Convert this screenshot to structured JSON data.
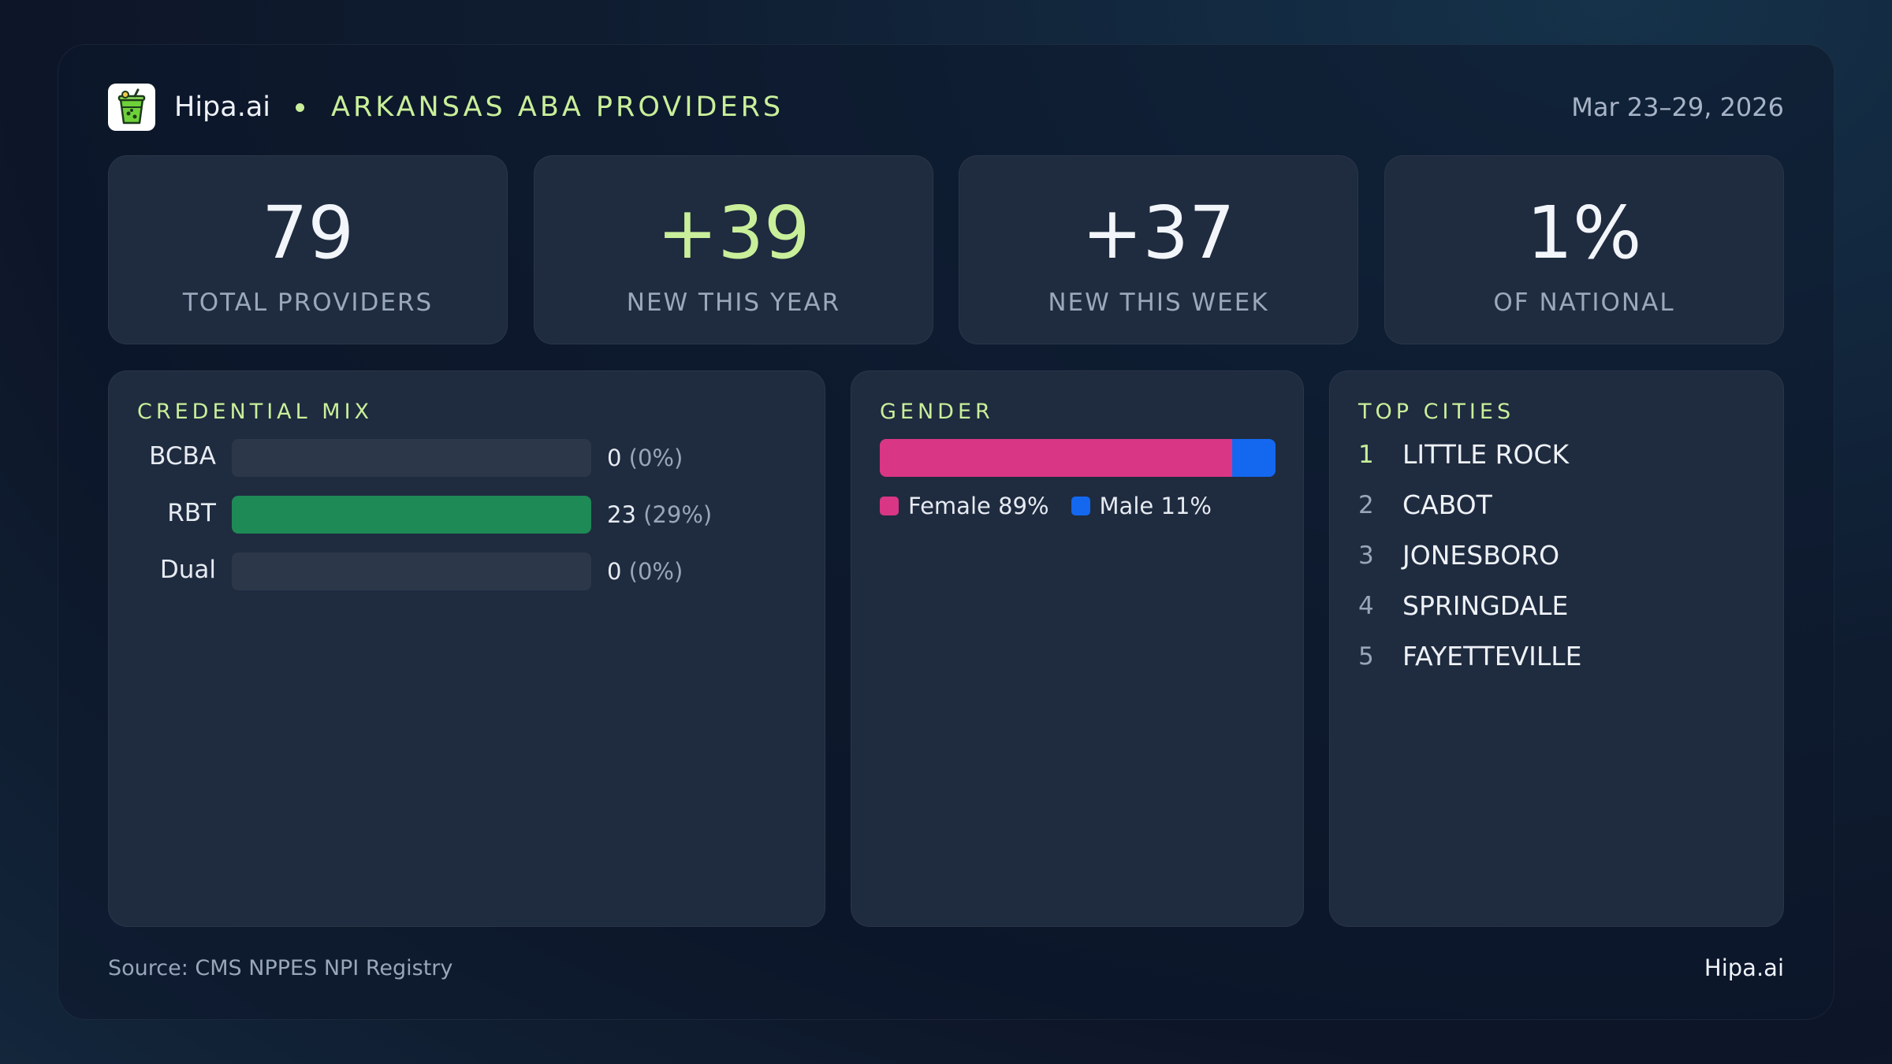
{
  "header": {
    "brand": "Hipa.ai",
    "subtitle": "ARKANSAS ABA PROVIDERS",
    "date_range": "Mar 23–29, 2026",
    "logo_icon": "cup-logo-icon"
  },
  "kpis": [
    {
      "value": "79",
      "label": "TOTAL PROVIDERS"
    },
    {
      "value": "+39",
      "label": "NEW THIS YEAR",
      "accent": "#c9ef9a"
    },
    {
      "value": "+37",
      "label": "NEW THIS WEEK"
    },
    {
      "value": "1%",
      "label": "OF NATIONAL"
    }
  ],
  "credential_mix": {
    "title": "CREDENTIAL MIX",
    "items": [
      {
        "name": "BCBA",
        "count": "0",
        "pct": "(0%)",
        "fill_fraction": 0
      },
      {
        "name": "RBT",
        "count": "23",
        "pct": "(29%)",
        "fill_fraction": 1.0
      },
      {
        "name": "Dual",
        "count": "0",
        "pct": "(0%)",
        "fill_fraction": 0
      }
    ],
    "bar_color": "#1e8a55"
  },
  "gender": {
    "title": "GENDER",
    "female_label": "Female 89%",
    "male_label": "Male 11%",
    "female_fraction": 0.89,
    "male_fraction": 0.11,
    "female_color": "#d93685",
    "male_color": "#1468f0"
  },
  "top_cities": {
    "title": "TOP CITIES",
    "items": [
      {
        "rank": "1",
        "name": "LITTLE ROCK"
      },
      {
        "rank": "2",
        "name": "CABOT"
      },
      {
        "rank": "3",
        "name": "JONESBORO"
      },
      {
        "rank": "4",
        "name": "SPRINGDALE"
      },
      {
        "rank": "5",
        "name": "FAYETTEVILLE"
      }
    ]
  },
  "footer": {
    "source": "Source: CMS NPPES NPI Registry",
    "brand": "Hipa.ai"
  }
}
